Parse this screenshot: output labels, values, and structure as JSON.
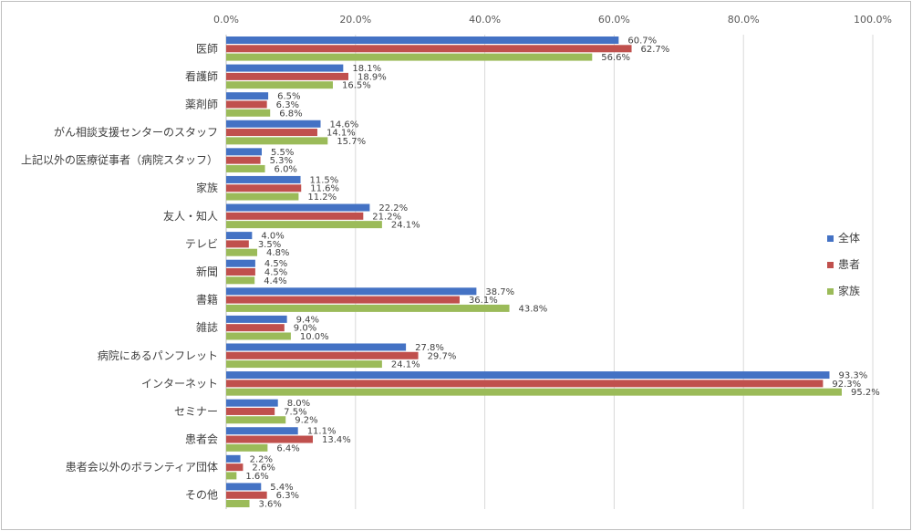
{
  "chart_data": {
    "type": "bar",
    "orientation": "horizontal",
    "xlim": [
      0,
      100
    ],
    "x_tick_labels": [
      "0.0%",
      "20.0%",
      "40.0%",
      "60.0%",
      "80.0%",
      "100.0%"
    ],
    "grid": true,
    "legend_position": "right",
    "categories": [
      "医師",
      "看護師",
      "薬剤師",
      "がん相談支援センターのスタッフ",
      "上記以外の医療従事者（病院スタッフ）",
      "家族",
      "友人・知人",
      "テレビ",
      "新聞",
      "書籍",
      "雑誌",
      "病院にあるパンフレット",
      "インターネット",
      "セミナー",
      "患者会",
      "患者会以外のボランティア団体",
      "その他"
    ],
    "series": [
      {
        "name": "全体",
        "color": "#4472c4",
        "values": [
          60.7,
          18.1,
          6.5,
          14.6,
          5.5,
          11.5,
          22.2,
          4.0,
          4.5,
          38.7,
          9.4,
          27.8,
          93.3,
          8.0,
          11.1,
          2.2,
          5.4
        ],
        "labels": [
          "60.7%",
          "18.1%",
          "6.5%",
          "14.6%",
          "5.5%",
          "11.5%",
          "22.2%",
          "4.0%",
          "4.5%",
          "38.7%",
          "9.4%",
          "27.8%",
          "93.3%",
          "8.0%",
          "11.1%",
          "2.2%",
          "5.4%"
        ]
      },
      {
        "name": "患者",
        "color": "#c0504d",
        "values": [
          62.7,
          18.9,
          6.3,
          14.1,
          5.3,
          11.6,
          21.2,
          3.5,
          4.5,
          36.1,
          9.0,
          29.7,
          92.3,
          7.5,
          13.4,
          2.6,
          6.3
        ],
        "labels": [
          "62.7%",
          "18.9%",
          "6.3%",
          "14.1%",
          "5.3%",
          "11.6%",
          "21.2%",
          "3.5%",
          "4.5%",
          "36.1%",
          "9.0%",
          "29.7%",
          "92.3%",
          "7.5%",
          "13.4%",
          "2.6%",
          "6.3%"
        ]
      },
      {
        "name": "家族",
        "color": "#9bbb59",
        "values": [
          56.6,
          16.5,
          6.8,
          15.7,
          6.0,
          11.2,
          24.1,
          4.8,
          4.4,
          43.8,
          10.0,
          24.1,
          95.2,
          9.2,
          6.4,
          1.6,
          3.6
        ],
        "labels": [
          "56.6%",
          "16.5%",
          "6.8%",
          "15.7%",
          "6.0%",
          "11.2%",
          "24.1%",
          "4.8%",
          "4.4%",
          "43.8%",
          "10.0%",
          "24.1%",
          "95.2%",
          "9.2%",
          "6.4%",
          "1.6%",
          "3.6%"
        ]
      }
    ]
  }
}
